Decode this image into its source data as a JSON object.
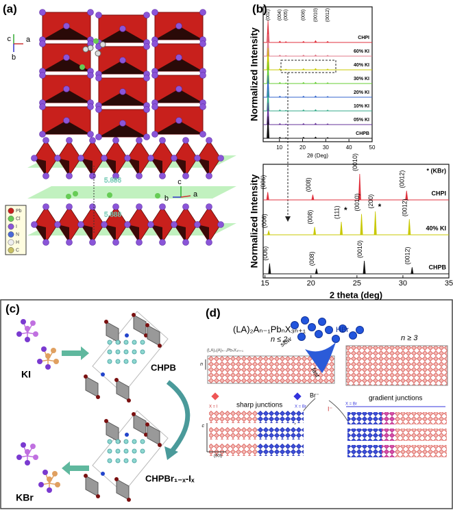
{
  "panel_labels": [
    "(a)",
    "(b)",
    "(c)",
    "(d)"
  ],
  "panel_a": {
    "axes_top": [
      "c",
      "a",
      "b"
    ],
    "spacings": [
      "5.886",
      "5.888"
    ],
    "axes_layer": [
      "c",
      "b",
      "a"
    ],
    "legend": [
      "Pb",
      "Cl",
      "I",
      "N",
      "H",
      "C"
    ]
  },
  "chart_data": [
    {
      "type": "line",
      "xlabel": "2θ (Deg)",
      "ylabel": "Normalized Intensity",
      "xlim": [
        3,
        50
      ],
      "xticks": [
        10,
        20,
        30,
        40,
        50
      ],
      "x": [
        5.1,
        10.2,
        12.8,
        20.4,
        25.6,
        30.8
      ],
      "peak_labels": [
        "(002)",
        "(004)",
        "(005)",
        "(008)",
        "(0010)",
        "(0012)"
      ],
      "series": [
        {
          "name": "CHPI",
          "color": "#e0303c",
          "values": [
            1,
            0.06,
            0.04,
            0.05,
            0.08,
            0.05
          ]
        },
        {
          "name": "60% KI",
          "color": "#e07a8a",
          "values": [
            1,
            0.05,
            0.03,
            0.05,
            0.06,
            0.04
          ]
        },
        {
          "name": "40% KI",
          "color": "#c8c800",
          "values": [
            1,
            0.05,
            0.03,
            0.05,
            0.06,
            0.04
          ]
        },
        {
          "name": "30% KI",
          "color": "#66cc33",
          "values": [
            1,
            0.05,
            0.03,
            0.05,
            0.06,
            0.04
          ]
        },
        {
          "name": "20% KI",
          "color": "#3366cc",
          "values": [
            1,
            0.05,
            0.03,
            0.05,
            0.06,
            0.04
          ]
        },
        {
          "name": "10% KI",
          "color": "#33aa88",
          "values": [
            1,
            0.05,
            0.03,
            0.05,
            0.06,
            0.04
          ]
        },
        {
          "name": "05% KI",
          "color": "#663399",
          "values": [
            1,
            0.05,
            0.03,
            0.05,
            0.06,
            0.04
          ]
        },
        {
          "name": "CHPB",
          "color": "#111111",
          "values": [
            1,
            0.05,
            0.03,
            0.05,
            0.06,
            0.04
          ]
        }
      ]
    },
    {
      "type": "line",
      "xlabel": "2 theta (deg)",
      "ylabel": "Normalized Intensity",
      "xlim": [
        14.8,
        35
      ],
      "xticks": [
        15,
        20,
        25,
        30,
        35
      ],
      "note": "* (KBr)",
      "marker": "*",
      "series": [
        {
          "name": "CHPI",
          "color": "#e0303c",
          "x": [
            15.3,
            20.2,
            25.3,
            30.4
          ],
          "values": [
            0.3,
            0.2,
            1,
            0.35
          ],
          "peak_labels": [
            "(006)",
            "(008)",
            "(0010)",
            "(0012)"
          ]
        },
        {
          "name": "40% KI",
          "color": "#c8c800",
          "x": [
            15.4,
            20.4,
            23.3,
            25.5,
            27.0,
            30.7
          ],
          "values": [
            0.15,
            0.3,
            0.5,
            0.8,
            0.9,
            0.6
          ],
          "peak_labels": [
            "(006)",
            "(008)",
            "(111)",
            "(0010)",
            "(200)",
            "(0012)"
          ]
        },
        {
          "name": "CHPB",
          "color": "#111111",
          "x": [
            15.5,
            20.6,
            25.8,
            31.0
          ],
          "values": [
            0.4,
            0.2,
            0.5,
            0.25
          ],
          "peak_labels": [
            "(006)",
            "(008)",
            "(0010)",
            "(0012)"
          ]
        }
      ]
    }
  ],
  "panel_c": {
    "reactant": "KI",
    "phase_top": "CHPB",
    "product": "KBr",
    "phase_bottom": "CHPBr₁₋ₓ-Iₓ"
  },
  "panel_d": {
    "formula": "(LA)₂Aₙ₋₁PbₙX₃ₙ₊₁",
    "small_formula": "(LA)₂(A)ₙ₋₁PbₙX₃ₙ₊₁",
    "left_n": "n ≤ 2",
    "right_n": "n ≥ 3",
    "slow": "slow",
    "fast": "fast",
    "acid": "HBr",
    "bromide": "Br⁻",
    "iodide": "I⁻",
    "sharp": "sharp junctions",
    "gradient": "gradient junctions",
    "x_i": "X = I",
    "x_br": "X = Br",
    "x_br_right": "X = Br",
    "axis_c": "c",
    "axis_00l": "(00l)",
    "axis_n": "n"
  }
}
